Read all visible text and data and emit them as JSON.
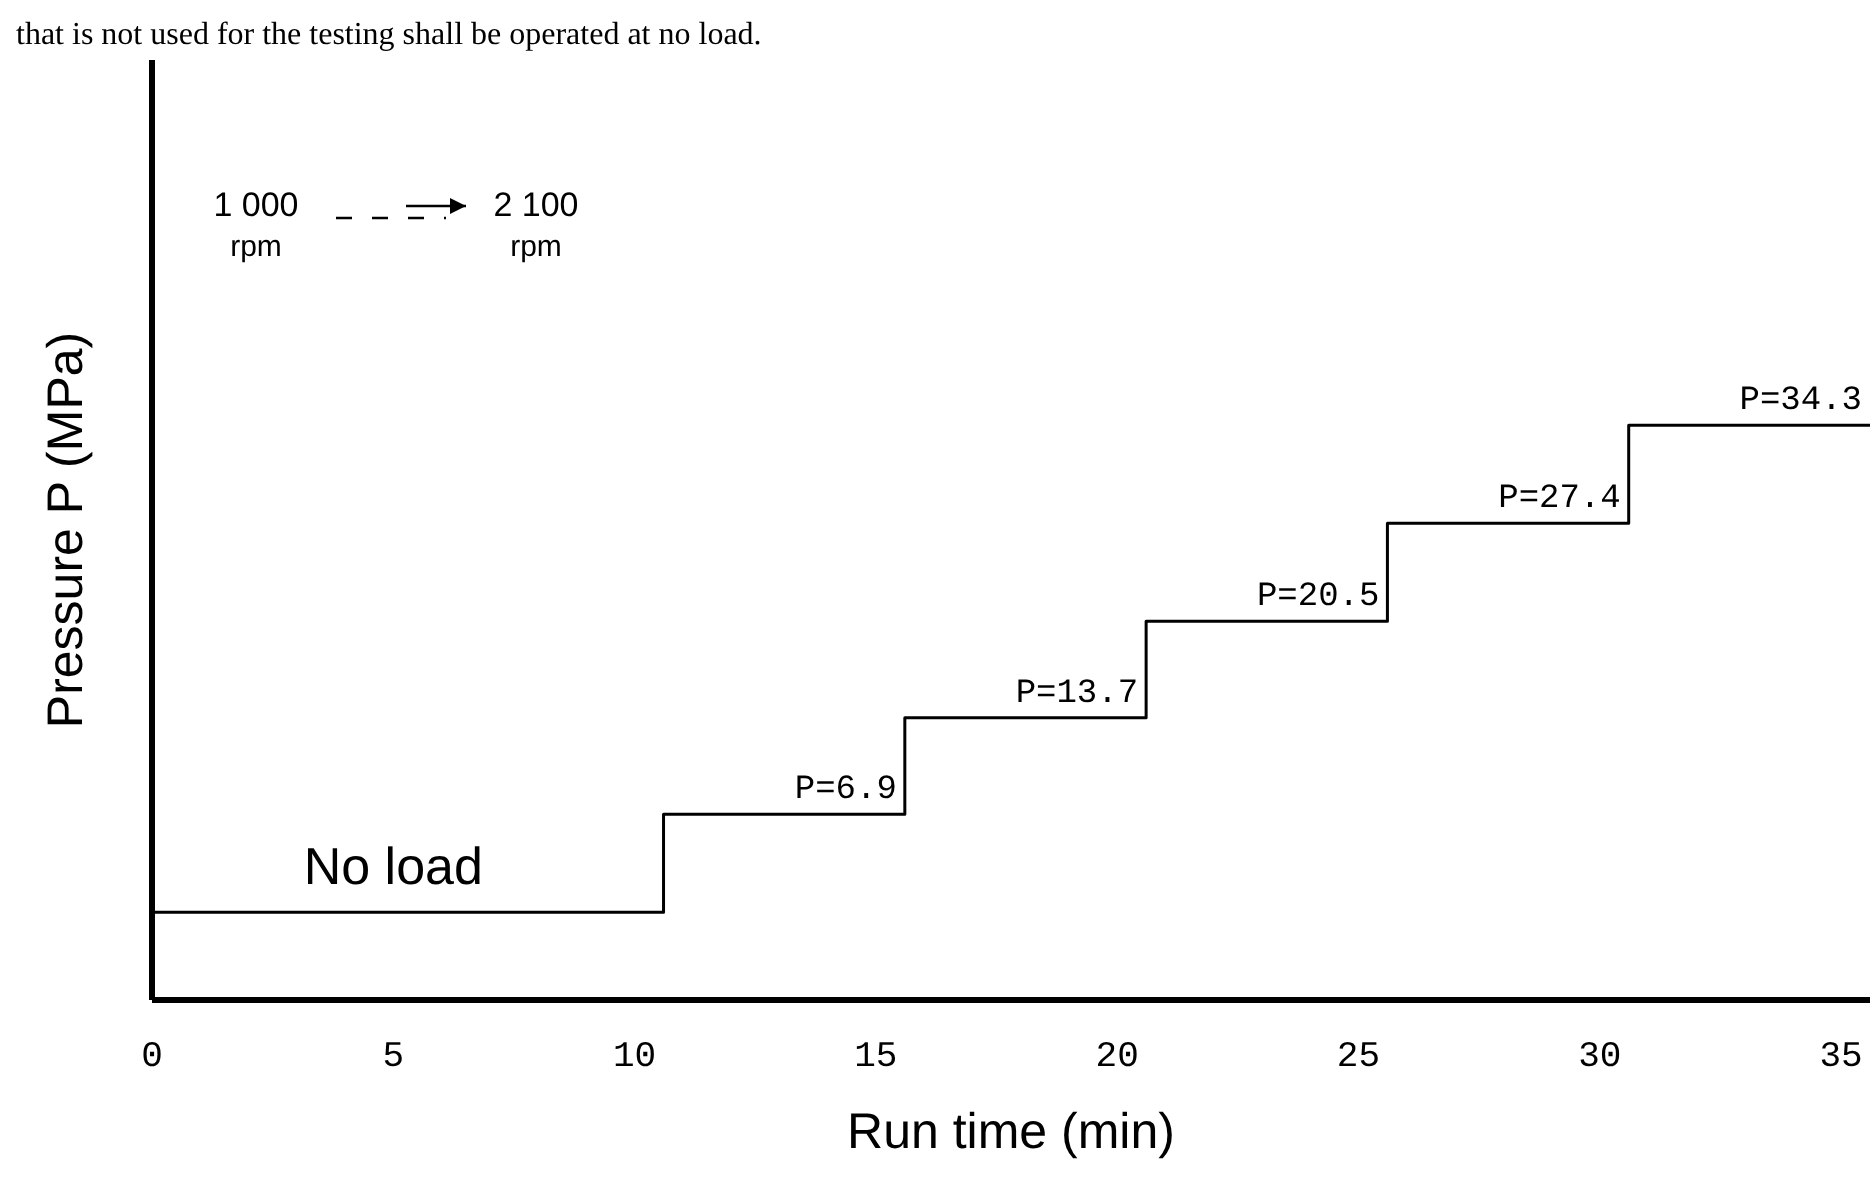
{
  "chart_data": {
    "type": "step",
    "xlabel": "Run time (min)",
    "ylabel": "Pressure P (MPa)",
    "annotations": [
      "that is not used for the testing shall be operated at no load.",
      "1 000",
      "rpm",
      "2 100",
      "rpm",
      {
        "text": "No load",
        "x": 5,
        "y": 0
      }
    ],
    "x": [
      0,
      10.6,
      15.6,
      20.6,
      25.6,
      30.6,
      35.6
    ],
    "series": [
      {
        "color": "#000000",
        "values": [
          0,
          0,
          6.9,
          13.7,
          20.5,
          27.4,
          34.3
        ],
        "value_labels": [
          null,
          null,
          "P=6.9",
          "P=13.7",
          "P=20.5",
          "P=27.4",
          "P=34.3"
        ]
      }
    ],
    "xlim": [
      0,
      35.6
    ],
    "xticks": [
      0,
      5,
      10,
      15,
      20,
      25,
      30,
      35
    ],
    "tick_labels": "x",
    "grid": false
  }
}
